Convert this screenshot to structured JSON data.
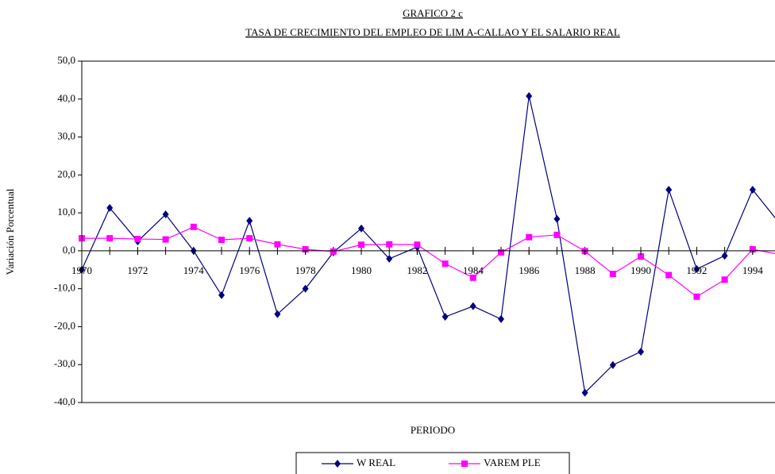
{
  "chart_data": {
    "type": "line",
    "title": "GRAFICO  2 c",
    "subtitle": "TASA DE CRECIMIENTO DEL EMPLEO DE  LIM A-CALLAO  Y EL SALARIO REAL",
    "x_label": "PERIODO",
    "y_label": "Variación  Porcentual",
    "x": [
      1970,
      1971,
      1972,
      1973,
      1974,
      1975,
      1976,
      1977,
      1978,
      1979,
      1980,
      1981,
      1982,
      1983,
      1984,
      1985,
      1986,
      1987,
      1988,
      1989,
      1990,
      1991,
      1992,
      1993,
      1994,
      1995
    ],
    "series": [
      {
        "name": "W REAL",
        "color": "#000080",
        "marker": "diamond",
        "values": [
          -5,
          11.3,
          2.5,
          9.6,
          0,
          -11.7,
          7.9,
          -16.7,
          -10,
          -0.4,
          5.9,
          -2.1,
          1,
          -17.4,
          -14.6,
          -18,
          40.8,
          8.4,
          -37.4,
          -30.1,
          -26.6,
          16.1,
          -4.8,
          -1.3,
          16.1,
          6.9
        ]
      },
      {
        "name": "VAREM PLE",
        "color": "#ff00ff",
        "marker": "square",
        "values": [
          3.3,
          3.3,
          3.1,
          3,
          6.3,
          2.9,
          3.3,
          1.7,
          0.4,
          -0.2,
          1.6,
          1.7,
          1.6,
          -3.4,
          -7.1,
          -0.4,
          3.6,
          4.2,
          -0.1,
          -6.1,
          -1.5,
          -6.4,
          -12.1,
          -7.6,
          0.4,
          -1
        ]
      }
    ],
    "xlim": [
      1970,
      1994.8
    ],
    "ylim": [
      -40,
      50
    ],
    "xticks": [
      1970,
      1972,
      1974,
      1976,
      1978,
      1980,
      1982,
      1984,
      1986,
      1988,
      1990,
      1992,
      1994
    ],
    "yticks": [
      {
        "value": -40,
        "label": "-40,0"
      },
      {
        "value": -30,
        "label": "-30,0"
      },
      {
        "value": -20,
        "label": "-20,0"
      },
      {
        "value": -10,
        "label": "-10,0"
      },
      {
        "value": 0,
        "label": "0,0"
      },
      {
        "value": 10,
        "label": "10,0"
      },
      {
        "value": 20,
        "label": "20,0"
      },
      {
        "value": 30,
        "label": "30,0"
      },
      {
        "value": 40,
        "label": "40,0"
      },
      {
        "value": 50,
        "label": "50,0"
      }
    ]
  }
}
